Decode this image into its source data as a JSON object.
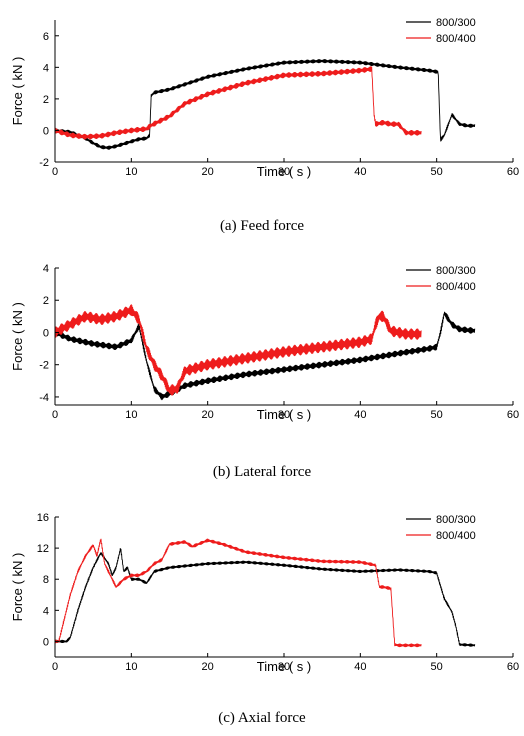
{
  "chart_data": [
    {
      "type": "line",
      "caption": "(a) Feed force",
      "xlabel": "Time ( s )",
      "ylabel": "Force ( kN )",
      "xlim": [
        0,
        60
      ],
      "ylim": [
        -2,
        7
      ],
      "xticks": [
        0,
        10,
        20,
        30,
        40,
        50,
        60
      ],
      "yticks": [
        -2,
        0,
        2,
        4,
        6
      ],
      "legend_position": "top-right",
      "series": [
        {
          "name": "800/300",
          "color": "#000000",
          "band": 0.25,
          "x": [
            0,
            2,
            4,
            5,
            6,
            7,
            8,
            9,
            10,
            11,
            12,
            12.4,
            12.6,
            13,
            15,
            20,
            25,
            30,
            35,
            40,
            45,
            49,
            50.2,
            50.5,
            51,
            52,
            53,
            54,
            55
          ],
          "y": [
            0,
            -0.1,
            -0.5,
            -0.8,
            -1.05,
            -1.1,
            -1.0,
            -0.85,
            -0.7,
            -0.55,
            -0.5,
            -0.3,
            2.2,
            2.4,
            2.6,
            3.4,
            3.9,
            4.3,
            4.4,
            4.3,
            4.0,
            3.8,
            3.7,
            -0.6,
            -0.3,
            1.0,
            0.4,
            0.3,
            0.3
          ]
        },
        {
          "name": "800/400",
          "color": "#ee1c1c",
          "band": 0.35,
          "x": [
            0,
            2,
            4,
            6,
            8,
            10,
            12,
            12.5,
            15,
            17,
            20,
            25,
            30,
            35,
            40,
            41.5,
            41.8,
            42,
            43,
            44,
            45,
            46,
            48
          ],
          "y": [
            0,
            -0.3,
            -0.4,
            -0.35,
            -0.15,
            0,
            0.1,
            0.3,
            0.9,
            1.7,
            2.3,
            3.0,
            3.5,
            3.6,
            3.8,
            3.9,
            1.0,
            0.4,
            0.5,
            0.4,
            0.4,
            -0.15,
            -0.15
          ]
        }
      ]
    },
    {
      "type": "line",
      "caption": "(b) Lateral force",
      "xlabel": "Time ( s )",
      "ylabel": "Force ( kN )",
      "xlim": [
        0,
        60
      ],
      "ylim": [
        -4.5,
        4
      ],
      "xticks": [
        0,
        10,
        20,
        30,
        40,
        50,
        60
      ],
      "yticks": [
        -4,
        -2,
        0,
        2,
        4
      ],
      "legend_position": "top-right",
      "series": [
        {
          "name": "800/300",
          "color": "#000000",
          "band": 0.4,
          "x": [
            0,
            2,
            5,
            8,
            10,
            11,
            12,
            13,
            14,
            15,
            17,
            20,
            25,
            30,
            35,
            40,
            45,
            49,
            50,
            50.5,
            51,
            52,
            53,
            55
          ],
          "y": [
            0,
            -0.4,
            -0.7,
            -0.9,
            -0.5,
            0.4,
            -1.8,
            -3.5,
            -4.0,
            -3.8,
            -3.3,
            -3.0,
            -2.6,
            -2.3,
            -2.0,
            -1.7,
            -1.3,
            -1.0,
            -0.9,
            0,
            1.2,
            0.5,
            0.2,
            0.1
          ]
        },
        {
          "name": "800/400",
          "color": "#ee1c1c",
          "band": 0.7,
          "x": [
            0,
            2,
            4,
            6,
            8,
            10,
            11,
            12,
            13,
            14,
            15,
            16,
            17,
            20,
            25,
            30,
            35,
            40,
            41.5,
            42,
            42.5,
            43,
            44,
            46,
            48
          ],
          "y": [
            0,
            0.5,
            1.0,
            0.8,
            1.0,
            1.4,
            0.8,
            -1.0,
            -2.0,
            -2.7,
            -3.6,
            -3.5,
            -2.4,
            -2.0,
            -1.6,
            -1.2,
            -0.9,
            -0.6,
            -0.4,
            0.5,
            1.0,
            1.0,
            0.1,
            -0.1,
            -0.1
          ]
        }
      ]
    },
    {
      "type": "line",
      "caption": "(c) Axial force",
      "xlabel": "Time ( s )",
      "ylabel": "Force ( kN )",
      "xlim": [
        0,
        60
      ],
      "ylim": [
        -2,
        16
      ],
      "xticks": [
        0,
        10,
        20,
        30,
        40,
        50,
        60
      ],
      "yticks": [
        0,
        4,
        8,
        12,
        16
      ],
      "legend_position": "top-right",
      "series": [
        {
          "name": "800/300",
          "color": "#000000",
          "band": 0.4,
          "x": [
            0,
            1.5,
            2,
            3,
            4,
            5,
            6,
            7,
            7.5,
            8,
            8.6,
            9,
            9.5,
            10,
            11,
            12,
            13,
            15,
            20,
            25,
            30,
            35,
            40,
            45,
            49,
            50,
            51,
            52,
            52.5,
            53,
            55
          ],
          "y": [
            0,
            0,
            0.5,
            4,
            7,
            9.5,
            11.4,
            10,
            8.5,
            9.5,
            12,
            9,
            9.5,
            8,
            8,
            7.5,
            9,
            9.5,
            10.0,
            10.2,
            9.8,
            9.3,
            9.0,
            9.2,
            9.0,
            8.8,
            5.5,
            3.8,
            2,
            -0.4,
            -0.5
          ]
        },
        {
          "name": "800/400",
          "color": "#ee1c1c",
          "band": 0.45,
          "x": [
            0,
            0.5,
            1,
            2,
            3,
            4,
            5,
            5.5,
            6,
            6.5,
            7,
            8,
            9,
            10,
            11,
            12,
            13,
            14,
            15,
            17,
            18,
            20,
            22,
            25,
            30,
            35,
            40,
            42,
            42.5,
            43,
            44,
            44.5,
            45,
            48
          ],
          "y": [
            0,
            0,
            2,
            6,
            9,
            11,
            12.4,
            11,
            13.2,
            10,
            9,
            7,
            8,
            8.5,
            8.5,
            9,
            10,
            10.5,
            12.5,
            12.8,
            12.2,
            13,
            12.5,
            11.5,
            10.8,
            10.3,
            10.2,
            9.8,
            7,
            7,
            6.8,
            -0.4,
            -0.5,
            -0.5
          ]
        }
      ]
    }
  ]
}
